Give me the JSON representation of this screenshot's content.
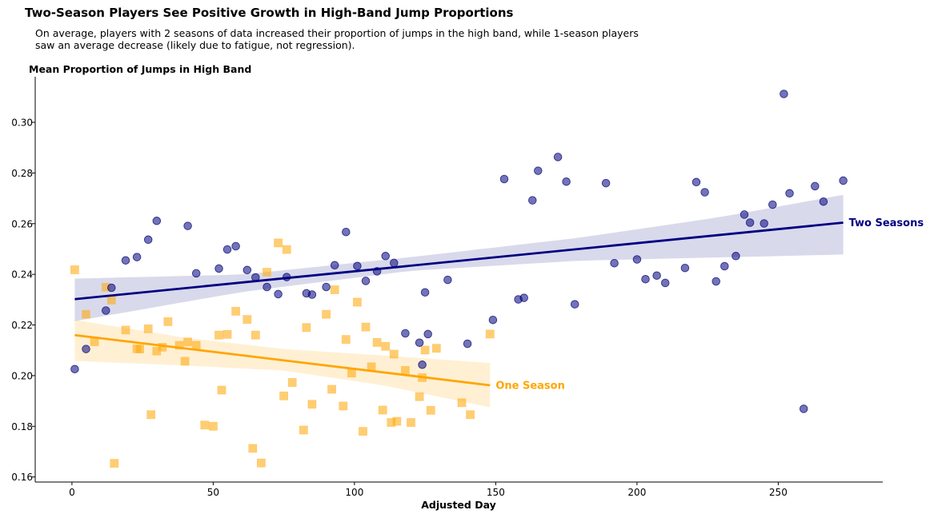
{
  "title": "Two-Season Players See Positive Growth in High-Band Jump Proportions",
  "subtitle_lines": [
    "On average, players with 2 seasons of data increased their proportion of jumps in the high band, while 1-season players",
    "saw an average decrease (likely due to fatigue, not regression)."
  ],
  "chart_data": {
    "type": "scatter",
    "title": "Two-Season Players See Positive Growth in High-Band Jump Proportions",
    "xlabel": "Adjusted Day",
    "ylabel": "Mean Proportion of Jumps in High Band",
    "xlim": [
      -13,
      287
    ],
    "ylim": [
      0.158,
      0.318
    ],
    "xticks": [
      0,
      50,
      100,
      150,
      200,
      250
    ],
    "yticks": [
      0.16,
      0.18,
      0.2,
      0.22,
      0.24,
      0.26,
      0.28,
      0.3
    ],
    "ytick_labels": [
      "0.16",
      "0.18",
      "0.20",
      "0.22",
      "0.24",
      "0.26",
      "0.28",
      "0.30"
    ],
    "grid": false,
    "legend": "inline labels at end of trend lines",
    "series": [
      {
        "name": "Two Seasons",
        "color": "#000080",
        "marker": "circle",
        "points": [
          [
            1,
            0.2026
          ],
          [
            5,
            0.2105
          ],
          [
            12,
            0.2257
          ],
          [
            14,
            0.2347
          ],
          [
            19,
            0.2455
          ],
          [
            23,
            0.2468
          ],
          [
            27,
            0.2537
          ],
          [
            30,
            0.2611
          ],
          [
            41,
            0.2591
          ],
          [
            44,
            0.2404
          ],
          [
            52,
            0.2423
          ],
          [
            55,
            0.2498
          ],
          [
            58,
            0.2511
          ],
          [
            62,
            0.2417
          ],
          [
            65,
            0.2388
          ],
          [
            69,
            0.235
          ],
          [
            73,
            0.2322
          ],
          [
            76,
            0.2389
          ],
          [
            83,
            0.2325
          ],
          [
            85,
            0.232
          ],
          [
            90,
            0.235
          ],
          [
            93,
            0.2436
          ],
          [
            97,
            0.2567
          ],
          [
            101,
            0.2433
          ],
          [
            104,
            0.2374
          ],
          [
            108,
            0.2412
          ],
          [
            111,
            0.2472
          ],
          [
            114,
            0.2445
          ],
          [
            118,
            0.2167
          ],
          [
            123,
            0.213
          ],
          [
            124,
            0.2043
          ],
          [
            125,
            0.2329
          ],
          [
            126,
            0.2164
          ],
          [
            133,
            0.2378
          ],
          [
            140,
            0.2126
          ],
          [
            149,
            0.222
          ],
          [
            153,
            0.2776
          ],
          [
            158,
            0.2301
          ],
          [
            160,
            0.2307
          ],
          [
            163,
            0.2692
          ],
          [
            165,
            0.2809
          ],
          [
            172,
            0.2863
          ],
          [
            175,
            0.2766
          ],
          [
            178,
            0.2282
          ],
          [
            189,
            0.276
          ],
          [
            192,
            0.2444
          ],
          [
            200,
            0.2459
          ],
          [
            203,
            0.2381
          ],
          [
            207,
            0.2395
          ],
          [
            210,
            0.2366
          ],
          [
            217,
            0.2425
          ],
          [
            221,
            0.2764
          ],
          [
            224,
            0.2724
          ],
          [
            228,
            0.2372
          ],
          [
            231,
            0.2432
          ],
          [
            235,
            0.2472
          ],
          [
            238,
            0.2636
          ],
          [
            240,
            0.2604
          ],
          [
            245,
            0.2601
          ],
          [
            248,
            0.2675
          ],
          [
            252,
            0.3112
          ],
          [
            254,
            0.272
          ],
          [
            259,
            0.1869
          ],
          [
            263,
            0.2748
          ],
          [
            266,
            0.2687
          ],
          [
            273,
            0.277
          ]
        ],
        "trend": {
          "x": [
            1,
            273
          ],
          "y": [
            0.2302,
            0.2604
          ]
        },
        "ci": {
          "x": [
            1,
            60,
            120,
            180,
            230,
            273
          ],
          "lower": [
            0.2215,
            0.233,
            0.2414,
            0.2454,
            0.2467,
            0.2478
          ],
          "upper": [
            0.2383,
            0.2399,
            0.2468,
            0.2545,
            0.2627,
            0.2714
          ]
        },
        "label": "Two Seasons"
      },
      {
        "name": "One Season",
        "color": "#FFA500",
        "marker": "square",
        "points": [
          [
            1,
            0.2418
          ],
          [
            5,
            0.2242
          ],
          [
            8,
            0.2134
          ],
          [
            12,
            0.2349
          ],
          [
            14,
            0.2298
          ],
          [
            15,
            0.1654
          ],
          [
            19,
            0.218
          ],
          [
            23,
            0.2106
          ],
          [
            24,
            0.2105
          ],
          [
            27,
            0.2185
          ],
          [
            28,
            0.1846
          ],
          [
            30,
            0.2097
          ],
          [
            32,
            0.2112
          ],
          [
            34,
            0.2213
          ],
          [
            38,
            0.212
          ],
          [
            40,
            0.2057
          ],
          [
            41,
            0.2133
          ],
          [
            44,
            0.212
          ],
          [
            47,
            0.1805
          ],
          [
            50,
            0.18
          ],
          [
            52,
            0.216
          ],
          [
            53,
            0.1943
          ],
          [
            55,
            0.2163
          ],
          [
            58,
            0.2254
          ],
          [
            62,
            0.2222
          ],
          [
            64,
            0.1713
          ],
          [
            65,
            0.216
          ],
          [
            67,
            0.1655
          ],
          [
            69,
            0.2408
          ],
          [
            73,
            0.2524
          ],
          [
            75,
            0.192
          ],
          [
            76,
            0.2498
          ],
          [
            78,
            0.1973
          ],
          [
            82,
            0.1785
          ],
          [
            83,
            0.219
          ],
          [
            85,
            0.1887
          ],
          [
            90,
            0.2242
          ],
          [
            92,
            0.1946
          ],
          [
            93,
            0.2339
          ],
          [
            96,
            0.188
          ],
          [
            97,
            0.2143
          ],
          [
            99,
            0.201
          ],
          [
            101,
            0.229
          ],
          [
            103,
            0.178
          ],
          [
            104,
            0.2192
          ],
          [
            106,
            0.2035
          ],
          [
            108,
            0.2131
          ],
          [
            110,
            0.1864
          ],
          [
            111,
            0.2116
          ],
          [
            113,
            0.1815
          ],
          [
            114,
            0.2085
          ],
          [
            115,
            0.182
          ],
          [
            118,
            0.2021
          ],
          [
            120,
            0.1815
          ],
          [
            123,
            0.1917
          ],
          [
            124,
            0.1992
          ],
          [
            125,
            0.2101
          ],
          [
            127,
            0.1863
          ],
          [
            129,
            0.2108
          ],
          [
            138,
            0.1893
          ],
          [
            141,
            0.1846
          ],
          [
            148,
            0.2164
          ]
        ],
        "trend": {
          "x": [
            1,
            148
          ],
          "y": [
            0.216,
            0.1962
          ]
        },
        "ci": {
          "x": [
            1,
            40,
            75,
            110,
            148
          ],
          "lower": [
            0.2058,
            0.204,
            0.202,
            0.1962,
            0.1875
          ],
          "upper": [
            0.222,
            0.215,
            0.2105,
            0.208,
            0.205
          ]
        },
        "label": "One Season"
      }
    ]
  }
}
